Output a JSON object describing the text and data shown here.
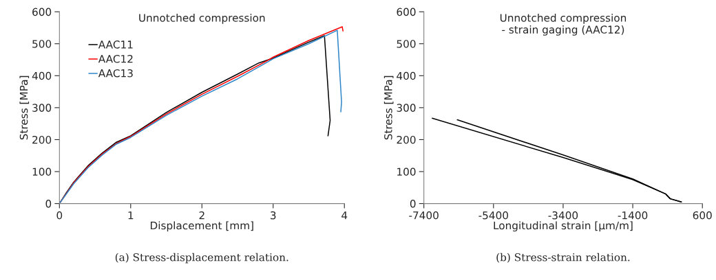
{
  "chart_data": [
    {
      "type": "line",
      "title": "Unnotched compression",
      "xlabel": "Displacement [mm]",
      "ylabel": "Stress [MPa]",
      "xlim": [
        0,
        4
      ],
      "xticks": [
        0,
        1,
        2,
        3,
        4
      ],
      "ylim": [
        0,
        600
      ],
      "yticks": [
        0,
        100,
        200,
        300,
        400,
        500,
        600
      ],
      "grid": false,
      "legend": "top left",
      "series": [
        {
          "name": "AAC11",
          "color": "#000000",
          "x": [
            0,
            0.1,
            0.2,
            0.4,
            0.6,
            0.8,
            1,
            1.5,
            2,
            2.5,
            2.8,
            3,
            3.5,
            3.72,
            3.8,
            3.77
          ],
          "values": [
            0,
            35,
            67,
            118,
            158,
            192,
            212,
            285,
            348,
            405,
            440,
            455,
            505,
            525,
            260,
            212
          ]
        },
        {
          "name": "AAC12",
          "color": "#ff0000",
          "x": [
            0,
            0.2,
            0.4,
            0.6,
            0.8,
            1,
            1.5,
            2,
            2.5,
            2.9,
            3,
            3.5,
            3.97,
            3.98
          ],
          "values": [
            0,
            65,
            115,
            155,
            188,
            210,
            280,
            342,
            398,
            445,
            458,
            510,
            553,
            540
          ]
        },
        {
          "name": "AAC13",
          "color": "#2e86c8",
          "x": [
            0,
            0.2,
            0.4,
            0.6,
            0.8,
            1,
            1.5,
            2,
            2.5,
            2.9,
            3,
            3.5,
            3.9,
            3.96,
            3.95
          ],
          "values": [
            0,
            62,
            112,
            152,
            186,
            207,
            276,
            336,
            390,
            440,
            453,
            500,
            542,
            318,
            287
          ]
        }
      ],
      "annotations": [
        "(a) Stress-displacement relation."
      ]
    },
    {
      "type": "line",
      "title": "Unnotched compression\n- strain gaging (AAC12)",
      "xlabel": "Longitudinal strain [µm/m]",
      "ylabel": "Stress [MPa]",
      "xlim": [
        -7400,
        600
      ],
      "xticks": [
        -7400,
        -5400,
        -3400,
        -1400,
        600
      ],
      "ylim": [
        0,
        600
      ],
      "yticks": [
        0,
        100,
        200,
        300,
        400,
        500,
        600
      ],
      "grid": false,
      "series": [
        {
          "color": "#000000",
          "x": [
            -7160,
            -3400,
            -1400,
            -455,
            -323,
            -5
          ],
          "values": [
            267,
            144,
            75,
            30,
            15,
            5
          ]
        },
        {
          "color": "#000000",
          "x": [
            -6440,
            -3400,
            -1400,
            -455,
            -323,
            -5
          ],
          "values": [
            262,
            152,
            77,
            30,
            15,
            5
          ]
        }
      ],
      "annotations": [
        "(b) Stress-strain relation."
      ]
    }
  ]
}
